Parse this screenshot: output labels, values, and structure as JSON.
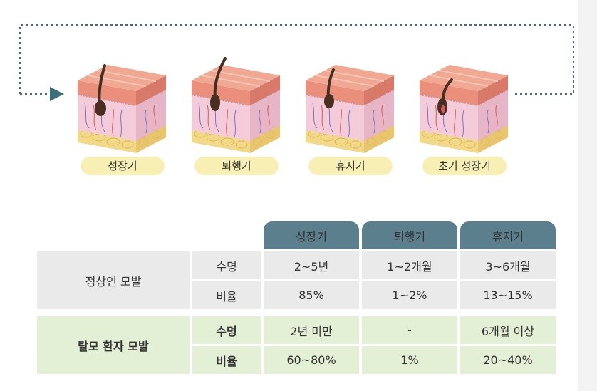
{
  "cycle": {
    "stages": [
      {
        "label": "성장기"
      },
      {
        "label": "퇴행기"
      },
      {
        "label": "휴지기"
      },
      {
        "label": "초기 성장기"
      }
    ],
    "colors": {
      "arrow": "#3e6e7a",
      "pill": "#f8efb4",
      "skin_top": "#f0a893",
      "dermis": "#f3cbd9",
      "fat": "#f2d98a",
      "hair": "#4a2f20"
    }
  },
  "table": {
    "headers": [
      "성장기",
      "퇴행기",
      "휴지기"
    ],
    "groups": [
      {
        "label": "정상인 모발",
        "rows": [
          {
            "label": "수명",
            "values": [
              "2~5년",
              "1~2개월",
              "3~6개월"
            ]
          },
          {
            "label": "비율",
            "values": [
              "85%",
              "1~2%",
              "13~15%"
            ]
          }
        ]
      },
      {
        "label": "탈모 환자 모발",
        "rows": [
          {
            "label": "수명",
            "values": [
              "2년 미만",
              "-",
              "6개월 이상"
            ]
          },
          {
            "label": "비율",
            "values": [
              "60~80%",
              "1%",
              "20~40%"
            ]
          }
        ]
      }
    ],
    "colors": {
      "header": "#5b7f8d",
      "normal_row": "#eaeaea",
      "loss_row": "#e4f0d6"
    }
  }
}
